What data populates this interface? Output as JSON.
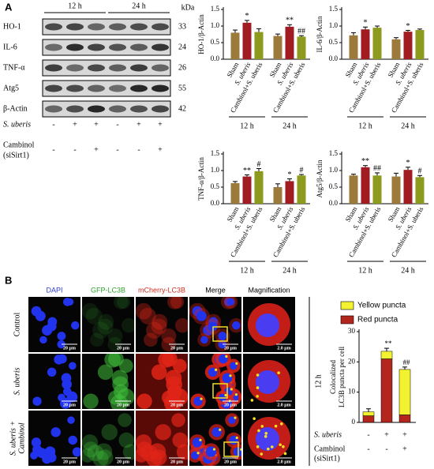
{
  "panel_a": {
    "label": "A",
    "time_points": [
      "12 h",
      "24 h"
    ],
    "unit": "kDa",
    "bands": [
      {
        "name": "HO-1",
        "kda": 33
      },
      {
        "name": "IL-6",
        "kda": 24
      },
      {
        "name": "TNF-α",
        "kda": 26
      },
      {
        "name": "Atg5",
        "kda": 55
      },
      {
        "name": "β-Actin",
        "kda": 42
      }
    ],
    "conditions": [
      {
        "name": "S. uberis",
        "signs": [
          "-",
          "+",
          "+",
          "-",
          "+",
          "+"
        ]
      },
      {
        "name": [
          "Cambinol",
          "(siSirt1)"
        ],
        "signs": [
          "-",
          "-",
          "+",
          "-",
          "-",
          "+"
        ]
      }
    ]
  },
  "chart_data": [
    {
      "type": "bar",
      "ylabel": "HO-1/β-Actin",
      "categories": [
        "12 h",
        "24 h"
      ],
      "ylim": [
        0,
        1.5
      ],
      "yticks": [
        {
          "value": 0,
          "label": "0.0"
        },
        0.5,
        {
          "value": 1,
          "label": "1.0"
        },
        1.5
      ],
      "series": [
        {
          "name": "Sham",
          "color": "#9c7a3c",
          "values": [
            0.8,
            0.7
          ],
          "errors": [
            0.08,
            0.06
          ]
        },
        {
          "name": "S. uberis",
          "color": "#a01c22",
          "values": [
            1.1,
            0.98
          ],
          "errors": [
            0.07,
            0.06
          ],
          "annotations": [
            "*",
            "**"
          ]
        },
        {
          "name": "Cambinol+S. uberis",
          "color": "#8c9a1e",
          "values": [
            0.82,
            0.68
          ],
          "errors": [
            0.1,
            0.03
          ],
          "annotations": [
            null,
            "##"
          ]
        }
      ]
    },
    {
      "type": "bar",
      "ylabel": "IL-6/β-Actin",
      "categories": [
        "12 h",
        "24 h"
      ],
      "ylim": [
        0,
        1.5
      ],
      "yticks": [
        {
          "value": 0,
          "label": "0.0"
        },
        0.5,
        {
          "value": 1,
          "label": "1.0"
        },
        1.5
      ],
      "series": [
        {
          "name": "Sham",
          "color": "#9c7a3c",
          "values": [
            0.72,
            0.6
          ],
          "errors": [
            0.08,
            0.05
          ]
        },
        {
          "name": "S. uberis",
          "color": "#a01c22",
          "values": [
            0.9,
            0.83
          ],
          "errors": [
            0.07,
            0.04
          ],
          "annotations": [
            "*",
            "*"
          ]
        },
        {
          "name": "Cambinol+S. uberis",
          "color": "#8c9a1e",
          "values": [
            0.95,
            0.88
          ],
          "errors": [
            0.05,
            0.03
          ]
        }
      ]
    },
    {
      "type": "bar",
      "ylabel": "TNF-α/β-Actin",
      "categories": [
        "12 h",
        "24 h"
      ],
      "ylim": [
        0,
        1.5
      ],
      "yticks": [
        {
          "value": 0,
          "label": "0.0"
        },
        0.5,
        {
          "value": 1,
          "label": "1.0"
        },
        1.5
      ],
      "series": [
        {
          "name": "Sham",
          "color": "#9c7a3c",
          "values": [
            0.62,
            0.5
          ],
          "errors": [
            0.05,
            0.1
          ]
        },
        {
          "name": "S. uberis",
          "color": "#a01c22",
          "values": [
            0.82,
            0.68
          ],
          "errors": [
            0.05,
            0.07
          ],
          "annotations": [
            "**",
            "*"
          ]
        },
        {
          "name": "Cambinol+S. uberis",
          "color": "#8c9a1e",
          "values": [
            0.98,
            0.85
          ],
          "errors": [
            0.08,
            0.03
          ],
          "annotations": [
            "#",
            "#"
          ]
        }
      ]
    },
    {
      "type": "bar",
      "ylabel": "Atg5/β-Actin",
      "categories": [
        "12 h",
        "24 h"
      ],
      "ylim": [
        0,
        1.5
      ],
      "yticks": [
        {
          "value": 0,
          "label": "0.0"
        },
        0.5,
        {
          "value": 1,
          "label": "1.0"
        },
        1.5
      ],
      "series": [
        {
          "name": "Sham",
          "color": "#9c7a3c",
          "values": [
            0.85,
            0.82
          ],
          "errors": [
            0.04,
            0.1
          ]
        },
        {
          "name": "S. uberis",
          "color": "#a01c22",
          "values": [
            1.1,
            1.02
          ],
          "errors": [
            0.05,
            0.08
          ],
          "annotations": [
            "**",
            "*"
          ]
        },
        {
          "name": "Cambinol+S. uberis",
          "color": "#8c9a1e",
          "values": [
            0.85,
            0.8
          ],
          "errors": [
            0.08,
            0.05
          ],
          "annotations": [
            "##",
            "#"
          ]
        }
      ]
    },
    {
      "type": "stacked_bar",
      "ylabel": [
        "Colocalized",
        "LC3B puncta per cell"
      ],
      "ylim": [
        0,
        30
      ],
      "yticks": [
        0,
        10,
        20,
        30
      ],
      "series": [
        {
          "name": "Red puncta",
          "color": "#b3261e",
          "values": [
            2.2,
            21,
            2.5
          ],
          "annotations": [
            null,
            null,
            "##"
          ]
        },
        {
          "name": "Yellow puncta",
          "color": "#f2f230",
          "values": [
            1.3,
            2.5,
            15
          ],
          "errors": [
            1,
            1,
            0.8
          ],
          "annotations": [
            null,
            "**",
            "##"
          ]
        }
      ],
      "conditions": [
        {
          "name": "S. uberis",
          "signs": [
            "-",
            "+",
            "+"
          ]
        },
        {
          "name": [
            "Cambinol",
            "(siSirt1)"
          ],
          "signs": [
            "-",
            "-",
            "+"
          ]
        }
      ]
    }
  ],
  "panel_b": {
    "label": "B",
    "columns": [
      "DAPI",
      "GFP-LC3B",
      "mCherry-LC3B",
      "Merge",
      "Magnification"
    ],
    "rows": [
      "Control",
      "S. uberis",
      [
        "S. uberis +",
        "Cambinol"
      ]
    ],
    "scale_bar": "20 μm",
    "magnified_scale_bar": "2.0 μm",
    "time": "12 h"
  }
}
